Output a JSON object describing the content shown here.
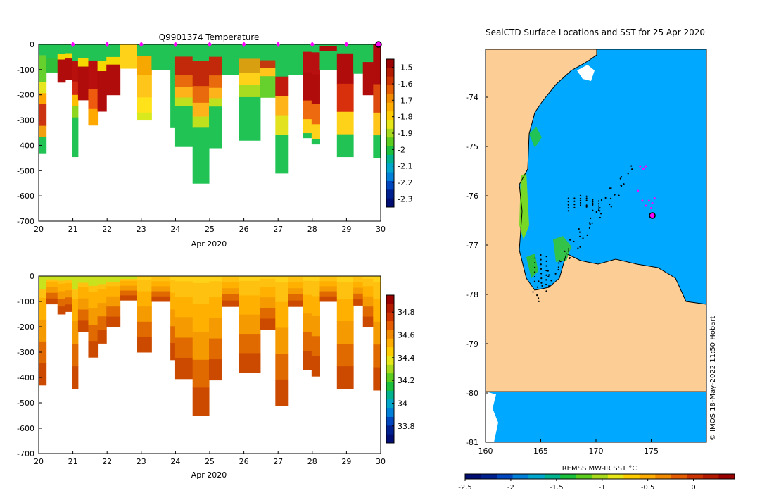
{
  "chart_data": [
    {
      "type": "heatmap",
      "title": "Q9901374  Temperature",
      "xlabel": "Apr 2020",
      "x_ticks": [
        "20",
        "21",
        "22",
        "23",
        "24",
        "25",
        "26",
        "27",
        "28",
        "29",
        "30"
      ],
      "y_ticks": [
        "0",
        "-100",
        "-200",
        "-300",
        "-400",
        "-500",
        "-600",
        "-700"
      ],
      "xlim": [
        20,
        30
      ],
      "ylim": [
        -700,
        0
      ],
      "colorbar": {
        "ticks": [
          "-1.5",
          "-1.6",
          "-1.7",
          "-1.8",
          "-1.9",
          "-2",
          "-2.1",
          "-2.2",
          "-2.3"
        ],
        "range": [
          -2.35,
          -1.45
        ]
      },
      "surface_markers_days": [
        21,
        22,
        23,
        24,
        25,
        26,
        27,
        28,
        29,
        30
      ],
      "profiles": [
        {
          "t0": 20.0,
          "t1": 20.22,
          "depth": 430,
          "pattern": "A"
        },
        {
          "t0": 20.22,
          "t1": 20.55,
          "depth": 110,
          "pattern": "S"
        },
        {
          "t0": 20.55,
          "t1": 20.78,
          "depth": 150,
          "pattern": "B"
        },
        {
          "t0": 20.78,
          "t1": 20.97,
          "depth": 140,
          "pattern": "B"
        },
        {
          "t0": 20.97,
          "t1": 21.15,
          "depth": 445,
          "pattern": "C"
        },
        {
          "t0": 21.15,
          "t1": 21.45,
          "depth": 220,
          "pattern": "B"
        },
        {
          "t0": 21.45,
          "t1": 21.72,
          "depth": 320,
          "pattern": "D"
        },
        {
          "t0": 21.72,
          "t1": 21.98,
          "depth": 265,
          "pattern": "B"
        },
        {
          "t0": 21.98,
          "t1": 22.38,
          "depth": 200,
          "pattern": "B"
        },
        {
          "t0": 22.38,
          "t1": 22.88,
          "depth": 95,
          "pattern": "Y"
        },
        {
          "t0": 22.88,
          "t1": 23.3,
          "depth": 300,
          "pattern": "E"
        },
        {
          "t0": 23.3,
          "t1": 23.85,
          "depth": 100,
          "pattern": "G"
        },
        {
          "t0": 23.85,
          "t1": 23.97,
          "depth": 330,
          "pattern": "G"
        },
        {
          "t0": 23.97,
          "t1": 24.5,
          "depth": 405,
          "pattern": "F"
        },
        {
          "t0": 24.5,
          "t1": 24.98,
          "depth": 550,
          "pattern": "F"
        },
        {
          "t0": 24.98,
          "t1": 25.35,
          "depth": 410,
          "pattern": "F"
        },
        {
          "t0": 25.35,
          "t1": 25.85,
          "depth": 120,
          "pattern": "G"
        },
        {
          "t0": 25.85,
          "t1": 26.48,
          "depth": 380,
          "pattern": "H"
        },
        {
          "t0": 26.48,
          "t1": 26.92,
          "depth": 210,
          "pattern": "I"
        },
        {
          "t0": 26.92,
          "t1": 27.3,
          "depth": 510,
          "pattern": "J"
        },
        {
          "t0": 27.3,
          "t1": 27.72,
          "depth": 120,
          "pattern": "G"
        },
        {
          "t0": 27.72,
          "t1": 27.98,
          "depth": 370,
          "pattern": "K"
        },
        {
          "t0": 27.98,
          "t1": 28.22,
          "depth": 395,
          "pattern": "K"
        },
        {
          "t0": 28.22,
          "t1": 28.72,
          "depth": 100,
          "pattern": "L"
        },
        {
          "t0": 28.72,
          "t1": 29.2,
          "depth": 445,
          "pattern": "M"
        },
        {
          "t0": 29.2,
          "t1": 29.48,
          "depth": 115,
          "pattern": "G"
        },
        {
          "t0": 29.48,
          "t1": 29.78,
          "depth": 200,
          "pattern": "N"
        },
        {
          "t0": 29.78,
          "t1": 30.0,
          "depth": 450,
          "pattern": "O"
        }
      ]
    },
    {
      "type": "heatmap",
      "title": "",
      "xlabel": "Apr 2020",
      "x_ticks": [
        "20",
        "21",
        "22",
        "23",
        "24",
        "25",
        "26",
        "27",
        "28",
        "29",
        "30"
      ],
      "y_ticks": [
        "0",
        "-100",
        "-200",
        "-300",
        "-400",
        "-500",
        "-600",
        "-700"
      ],
      "xlim": [
        20,
        30
      ],
      "ylim": [
        -700,
        0
      ],
      "colorbar": {
        "ticks": [
          "34.8",
          "34.6",
          "34.4",
          "34.2",
          "34",
          "33.8"
        ],
        "range": [
          33.65,
          34.95
        ]
      }
    },
    {
      "type": "heatmap",
      "title": "SealCTD Surface Locations and SST for 25 Apr 2020",
      "xlabel": "",
      "x_ticks": [
        "160",
        "165",
        "170",
        "175"
      ],
      "y_ticks": [
        "-74",
        "-75",
        "-76",
        "-77",
        "-78",
        "-79",
        "-80",
        "-81"
      ],
      "xlim": [
        160,
        180
      ],
      "ylim": [
        -81,
        -73
      ],
      "colorbar": {
        "label": "REMSS MW-IR SST °C",
        "ticks": [
          "-2.5",
          "-2",
          "-1.5",
          "-1",
          "-0.5",
          "0"
        ],
        "range": [
          -2.5,
          0.45
        ]
      },
      "credit": "© IMOS 18-May-2022 11:50 Hobart",
      "track_recent": [
        [
          174.0,
          -75.4
        ],
        [
          174.3,
          -75.45
        ],
        [
          174.5,
          -75.4
        ],
        [
          173.8,
          -75.9
        ],
        [
          174.2,
          -76.1
        ],
        [
          174.5,
          -76.2
        ],
        [
          174.8,
          -76.1
        ],
        [
          175.0,
          -76.25
        ],
        [
          175.3,
          -76.05
        ],
        [
          175.1,
          -76.15
        ]
      ],
      "current_position": [
        175.1,
        -76.4
      ]
    }
  ]
}
